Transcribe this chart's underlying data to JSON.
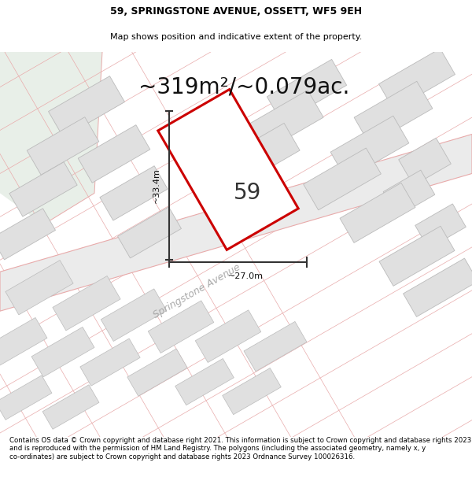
{
  "title_line1": "59, SPRINGSTONE AVENUE, OSSETT, WF5 9EH",
  "title_line2": "Map shows position and indicative extent of the property.",
  "area_text": "~319m²/~0.079ac.",
  "label_59": "59",
  "dim_width": "~27.0m",
  "dim_height": "~33.4m",
  "street_label": "Springstone Avenue",
  "footer_text": "Contains OS data © Crown copyright and database right 2021. This information is subject to Crown copyright and database rights 2023 and is reproduced with the permission of HM Land Registry. The polygons (including the associated geometry, namely x, y co-ordinates) are subject to Crown copyright and database rights 2023 Ordnance Survey 100026316.",
  "map_bg": "#f8f8f8",
  "green_area_color": "#e8efe8",
  "plot_border_color": "#cc0000",
  "plot_fill_color": "#ffffff",
  "building_fill": "#e0e0e0",
  "building_border": "#bbbbbb",
  "parcel_border": "#e8aaaa",
  "dim_line_color": "#333333",
  "title_fontsize": 9,
  "subtitle_fontsize": 8,
  "area_fontsize": 20,
  "footer_fontsize": 6.2,
  "street_fontsize": 9
}
